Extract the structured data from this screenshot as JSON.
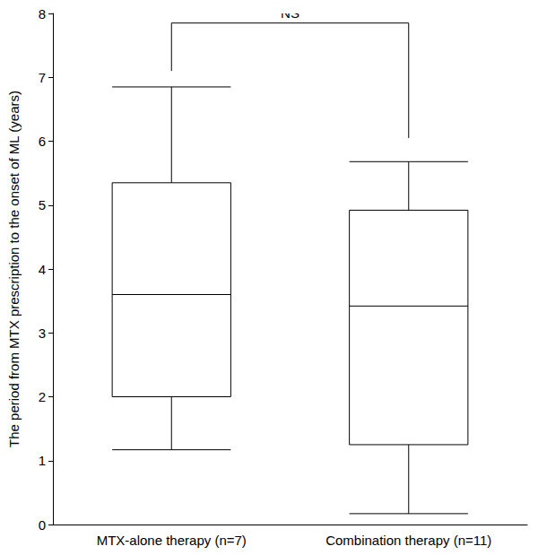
{
  "chart_data": {
    "type": "boxplot",
    "y_label": "The period from MTX prescription to the onset of ML (years)",
    "categories": [
      "MTX-alone therapy (n=7)",
      "Combination therapy (n=11)"
    ],
    "values": [
      [
        1.17,
        2.0,
        3.6,
        5.35,
        6.85
      ],
      [
        0.17,
        1.25,
        3.42,
        4.92,
        5.68
      ]
    ],
    "color": "#000000",
    "ylim": [
      0,
      8
    ],
    "yticks": [
      0,
      1,
      2,
      3,
      4,
      5,
      6,
      7,
      8
    ],
    "grid": false,
    "bracket": {
      "text": "NS",
      "y": 7.85,
      "ends": [
        7.1,
        6.05
      ]
    }
  }
}
